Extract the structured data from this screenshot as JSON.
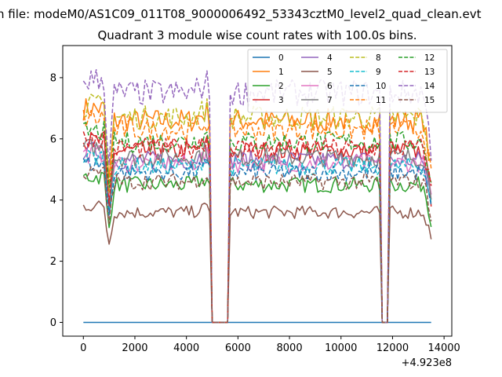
{
  "chart_data": {
    "type": "line",
    "suptitle": "n file: modeM0/AS1C09_011T08_9000006492_53343cztM0_level2_quad_clean.evt",
    "title": "Quadrant 3 module wise count rates with 100.0s bins.",
    "xlabel": "",
    "ylabel": "",
    "x_offset_label": "+4.923e8",
    "xlim": [
      -800,
      14300
    ],
    "ylim": [
      -0.45,
      9.05
    ],
    "xticks": [
      0,
      2000,
      4000,
      6000,
      8000,
      10000,
      12000,
      14000
    ],
    "xtick_labels": [
      "0",
      "2000",
      "4000",
      "6000",
      "8000",
      "10000",
      "12000",
      "14000"
    ],
    "yticks": [
      0,
      2,
      4,
      6,
      8
    ],
    "ytick_labels": [
      "0",
      "2",
      "4",
      "6",
      "8"
    ],
    "x_range": [
      0,
      13500
    ],
    "bin_width": 100,
    "gaps": [
      [
        4950,
        5700
      ],
      [
        11550,
        11850
      ]
    ],
    "legend_location": "upper right",
    "legend_columns": 4,
    "series": [
      {
        "name": "0",
        "color": "#1f77b4",
        "dash": "solid",
        "level": 0.0,
        "drop": 0.0
      },
      {
        "name": "1",
        "color": "#ff7f0e",
        "dash": "solid",
        "level": 6.6,
        "drop": 2.0
      },
      {
        "name": "2",
        "color": "#2ca02c",
        "dash": "solid",
        "level": 4.5,
        "drop": 1.4
      },
      {
        "name": "3",
        "color": "#d62728",
        "dash": "solid",
        "level": 5.6,
        "drop": 1.9
      },
      {
        "name": "4",
        "color": "#9467bd",
        "dash": "solid",
        "level": 5.3,
        "drop": 1.5
      },
      {
        "name": "5",
        "color": "#8c564b",
        "dash": "solid",
        "level": 3.6,
        "drop": 1.0
      },
      {
        "name": "6",
        "color": "#e377c2",
        "dash": "solid",
        "level": 5.2,
        "drop": 1.4
      },
      {
        "name": "7",
        "color": "#7f7f7f",
        "dash": "solid",
        "level": 5.4,
        "drop": 1.5
      },
      {
        "name": "8",
        "color": "#bcbd22",
        "dash": "dashed",
        "level": 6.7,
        "drop": 2.1
      },
      {
        "name": "9",
        "color": "#17becf",
        "dash": "dashed",
        "level": 5.1,
        "drop": 1.4
      },
      {
        "name": "10",
        "color": "#1f77b4",
        "dash": "dashed",
        "level": 4.9,
        "drop": 1.4
      },
      {
        "name": "11",
        "color": "#ff7f0e",
        "dash": "dashed",
        "level": 6.3,
        "drop": 1.9
      },
      {
        "name": "12",
        "color": "#2ca02c",
        "dash": "dashed",
        "level": 5.9,
        "drop": 1.7
      },
      {
        "name": "13",
        "color": "#d62728",
        "dash": "dashed",
        "level": 5.7,
        "drop": 1.7
      },
      {
        "name": "14",
        "color": "#9467bd",
        "dash": "dashed",
        "level": 7.5,
        "drop": 2.3
      },
      {
        "name": "15",
        "color": "#8c564b",
        "dash": "dashed",
        "level": 4.6,
        "drop": 1.3
      }
    ]
  }
}
